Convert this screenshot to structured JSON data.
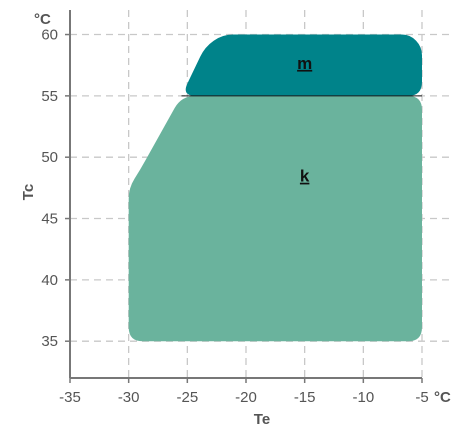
{
  "chart_data": {
    "type": "area",
    "xlabel": "Te",
    "ylabel": "Tc",
    "x_unit": "°C",
    "y_unit": "°C",
    "xlim": [
      -35,
      -5
    ],
    "ylim": [
      32,
      62
    ],
    "x_ticks": [
      "-35",
      "-30",
      "-25",
      "-20",
      "-15",
      "-10",
      "-5"
    ],
    "y_ticks": [
      "35",
      "40",
      "45",
      "50",
      "55",
      "60"
    ],
    "grid": true,
    "regions": [
      {
        "name": "k",
        "color": "#6ab39d",
        "label_at": [
          -15,
          48
        ],
        "points": [
          [
            -30,
            35
          ],
          [
            -30,
            47.5
          ],
          [
            -29,
            49
          ],
          [
            -25.5,
            55
          ],
          [
            -5,
            55
          ],
          [
            -5,
            35
          ]
        ]
      },
      {
        "name": "m",
        "color": "#00838a",
        "label_at": [
          -15,
          57.2
        ],
        "points": [
          [
            -25.5,
            55
          ],
          [
            -23.5,
            59
          ],
          [
            -22,
            60
          ],
          [
            -6,
            60
          ],
          [
            -5,
            59
          ],
          [
            -5,
            55
          ]
        ]
      }
    ]
  }
}
